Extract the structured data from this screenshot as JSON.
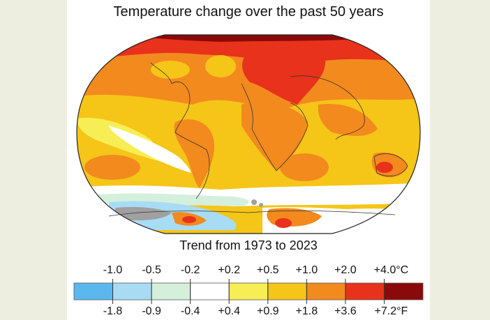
{
  "title": "Temperature change over the past 50 years",
  "subtitle": "Trend from 1973 to 2023",
  "legend": {
    "colors": [
      "#5ab8ee",
      "#a8dcf5",
      "#d4f0dc",
      "#ffffff",
      "#f7ee55",
      "#f5c518",
      "#f28a1e",
      "#e8321b",
      "#8a0a0a"
    ],
    "celsius_ticks": [
      "-1.0",
      "-0.5",
      "-0.2",
      "+0.2",
      "+0.5",
      "+1.0",
      "+2.0",
      "+4.0°C"
    ],
    "fahrenheit_ticks": [
      "-1.8",
      "-0.9",
      "-0.4",
      "+0.4",
      "+0.9",
      "+1.8",
      "+3.6",
      "+7.2°F"
    ]
  }
}
